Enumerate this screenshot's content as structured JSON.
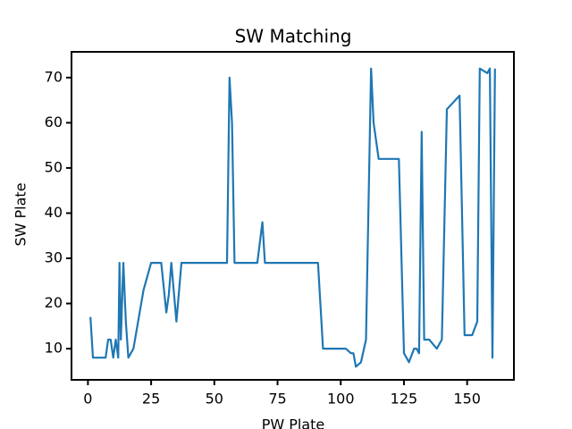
{
  "chart_data": {
    "type": "line",
    "title": "SW Matching",
    "xlabel": "PW Plate",
    "ylabel": "SW Plate",
    "x": [
      1,
      2,
      7,
      8,
      9,
      10,
      11,
      12,
      12.5,
      13,
      14,
      15,
      16,
      18,
      22,
      25,
      29,
      31,
      32,
      33,
      35,
      37,
      55,
      56,
      57,
      58,
      67,
      69,
      70,
      91,
      93,
      102,
      104,
      105,
      106,
      108,
      110,
      112,
      113,
      115,
      123,
      125,
      127,
      129,
      130,
      131,
      132,
      133,
      135,
      138,
      140,
      142,
      147,
      149,
      152,
      154,
      155,
      158,
      159,
      160,
      161
    ],
    "values": [
      17,
      8,
      8,
      12,
      12,
      8,
      12,
      8,
      29,
      12,
      29,
      16,
      8,
      10,
      23,
      29,
      29,
      18,
      22,
      29,
      16,
      29,
      29,
      70,
      60,
      29,
      29,
      38,
      29,
      29,
      10,
      10,
      9,
      9,
      6,
      7,
      12,
      72,
      60,
      52,
      52,
      9,
      7,
      10,
      10,
      9,
      58,
      12,
      12,
      10,
      12,
      63,
      66,
      13,
      13,
      16,
      72,
      71,
      72,
      8,
      72
    ],
    "color": "#1f77b4",
    "xlim": [
      -6.5,
      168.5
    ],
    "xticks": [
      0,
      25,
      50,
      75,
      100,
      125,
      150
    ],
    "ylim": [
      3.1,
      75.7
    ],
    "yticks": [
      10,
      20,
      30,
      40,
      50,
      60,
      70
    ]
  }
}
